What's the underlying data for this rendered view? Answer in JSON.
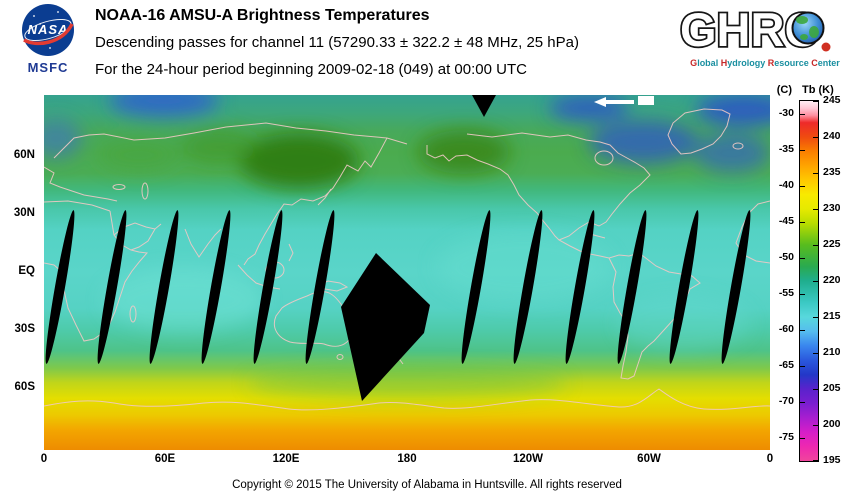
{
  "header": {
    "nasa_logo": {
      "label": "NASA",
      "sub_label": "MSFC"
    },
    "title": "NOAA-16 AMSU-A Brightness Temperatures",
    "subtitle": "Descending passes for channel 11 (57290.33 ± 322.2 ± 48 MHz, 25 hPa)",
    "period_line": "For the 24-hour period beginning 2009-02-18 (049) at 00:00 UTC",
    "ghrc_logo": {
      "label": "GHRC",
      "tagline": "Global Hydrology Resource Center"
    }
  },
  "map": {
    "y_ticks": [
      "60N",
      "30N",
      "EQ",
      "30S",
      "60S"
    ],
    "x_ticks": [
      "0",
      "60E",
      "120E",
      "180",
      "120W",
      "60W",
      "0"
    ]
  },
  "colorbar": {
    "celsius_header": "(C)",
    "kelvin_header": "Tb (K)",
    "celsius_ticks": [
      "-30",
      "-35",
      "-40",
      "-45",
      "-50",
      "-55",
      "-60",
      "-65",
      "-70",
      "-75"
    ],
    "kelvin_ticks": [
      "245",
      "240",
      "235",
      "230",
      "225",
      "220",
      "215",
      "210",
      "205",
      "200",
      "195"
    ],
    "gradient_stops": [
      {
        "k": 245,
        "color": "#ffeef4"
      },
      {
        "k": 244,
        "color": "#ffc9d6"
      },
      {
        "k": 243,
        "color": "#ff8fa0"
      },
      {
        "k": 242,
        "color": "#ee2a2a"
      },
      {
        "k": 240,
        "color": "#ef4b10"
      },
      {
        "k": 238,
        "color": "#fa7f00"
      },
      {
        "k": 236,
        "color": "#ffa400"
      },
      {
        "k": 234,
        "color": "#ffc900"
      },
      {
        "k": 232,
        "color": "#f8ea00"
      },
      {
        "k": 230,
        "color": "#e6ea00"
      },
      {
        "k": 228,
        "color": "#b9dc00"
      },
      {
        "k": 225,
        "color": "#57bc1e"
      },
      {
        "k": 222,
        "color": "#2aaa50"
      },
      {
        "k": 220,
        "color": "#1fae8e"
      },
      {
        "k": 217,
        "color": "#3bc9c4"
      },
      {
        "k": 215,
        "color": "#58d8dc"
      },
      {
        "k": 213,
        "color": "#55bdee"
      },
      {
        "k": 211,
        "color": "#3a86ee"
      },
      {
        "k": 209,
        "color": "#2a58dd"
      },
      {
        "k": 207,
        "color": "#2338c8"
      },
      {
        "k": 205,
        "color": "#5a22cc"
      },
      {
        "k": 203,
        "color": "#7a1ed0"
      },
      {
        "k": 201,
        "color": "#a81ed0"
      },
      {
        "k": 199,
        "color": "#d61ec8"
      },
      {
        "k": 197,
        "color": "#ee28b0"
      },
      {
        "k": 195,
        "color": "#f0459c"
      }
    ]
  },
  "footer": {
    "copyright": "Copyright © 2015 The University of Alabama in Huntsville. All rights reserved"
  },
  "colors": {
    "nasa_blue": "#0b3d91",
    "nasa_red": "#e23b32",
    "ghrc_tagline_teal": "#1a8fa0",
    "ghrc_tagline_red": "#c62828"
  }
}
